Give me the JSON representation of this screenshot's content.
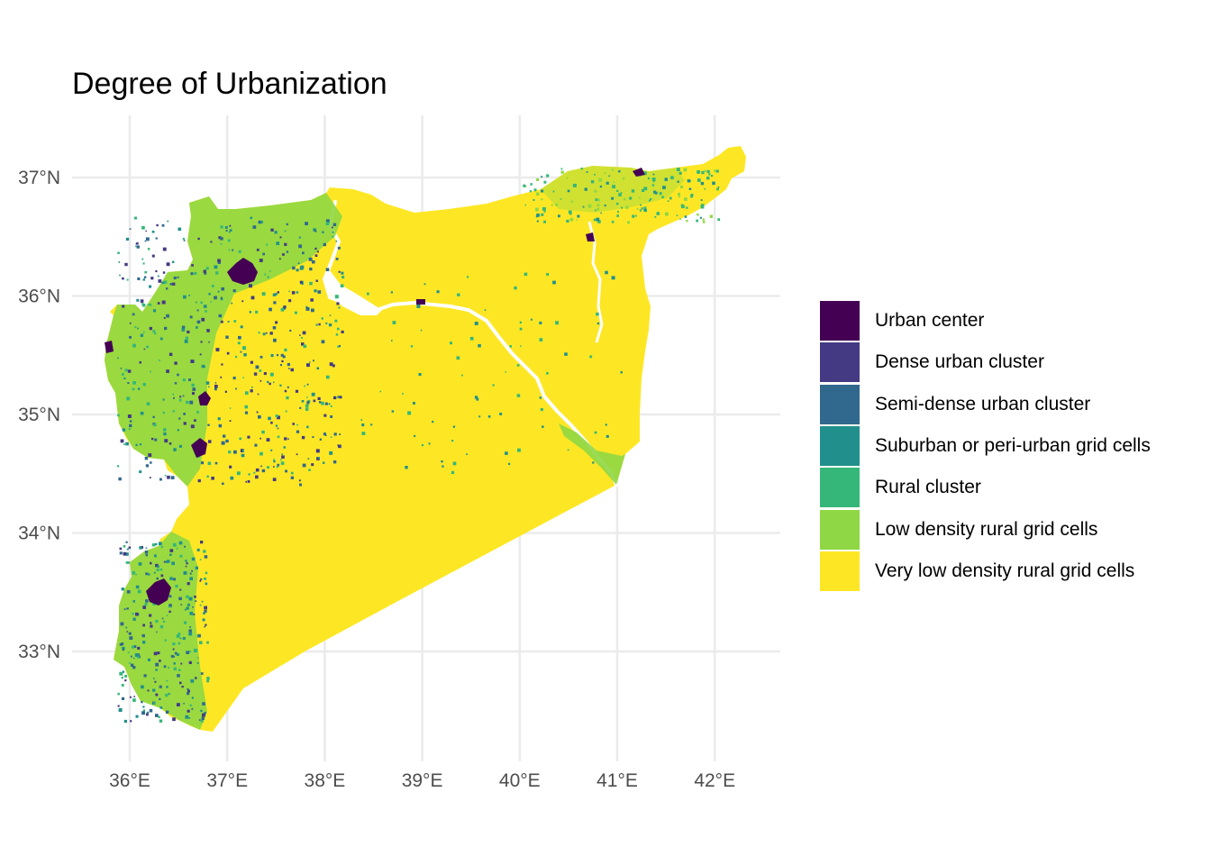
{
  "title": "Degree of Urbanization",
  "map": {
    "type": "choropleth",
    "subject": "Syria",
    "background_class": "Very low density rural grid cells",
    "x_axis": {
      "ticks": [
        {
          "value": 36,
          "label": "36°E"
        },
        {
          "value": 37,
          "label": "37°E"
        },
        {
          "value": 38,
          "label": "38°E"
        },
        {
          "value": 39,
          "label": "39°E"
        },
        {
          "value": 40,
          "label": "40°E"
        },
        {
          "value": 41,
          "label": "41°E"
        },
        {
          "value": 42,
          "label": "42°E"
        }
      ],
      "range": [
        35.5,
        42.5
      ]
    },
    "y_axis": {
      "ticks": [
        {
          "value": 33,
          "label": "33°N"
        },
        {
          "value": 34,
          "label": "34°N"
        },
        {
          "value": 35,
          "label": "35°N"
        },
        {
          "value": 36,
          "label": "36°N"
        },
        {
          "value": 37,
          "label": "37°N"
        }
      ],
      "range": [
        32.3,
        37.5
      ]
    },
    "grid": true,
    "legend_position": "right"
  },
  "legend": {
    "items": [
      {
        "label": "Urban center",
        "color": "#440154"
      },
      {
        "label": "Dense urban cluster",
        "color": "#443a83"
      },
      {
        "label": "Semi-dense urban cluster",
        "color": "#31688e"
      },
      {
        "label": "Suburban or peri-urban grid cells",
        "color": "#21908c"
      },
      {
        "label": "Rural cluster",
        "color": "#35b779"
      },
      {
        "label": "Low density rural grid cells",
        "color": "#8fd744"
      },
      {
        "label": "Very low density rural grid cells",
        "color": "#fde725"
      }
    ]
  }
}
